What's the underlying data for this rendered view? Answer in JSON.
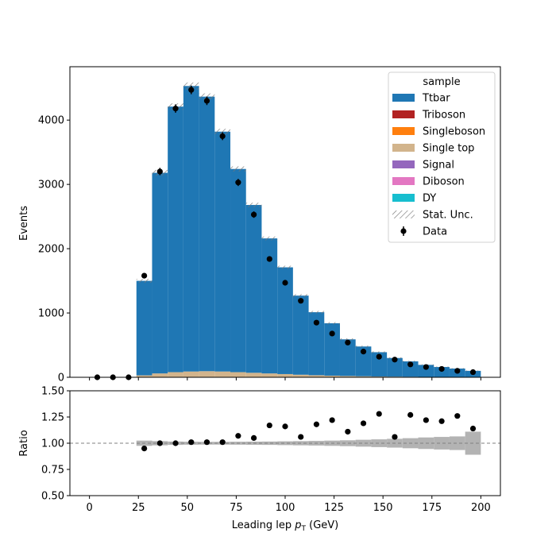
{
  "chart_data": [
    {
      "type": "bar",
      "ylabel": "Events",
      "ylim": [
        0,
        4830
      ],
      "yticks": [
        0,
        1000,
        2000,
        3000,
        4000
      ],
      "bin_edges": [
        0,
        8,
        16,
        24,
        32,
        40,
        48,
        56,
        64,
        72,
        80,
        88,
        96,
        104,
        112,
        120,
        128,
        136,
        144,
        152,
        160,
        168,
        176,
        184,
        192,
        200
      ],
      "legend": {
        "title": "sample",
        "position": "top-right",
        "entries": [
          "Ttbar",
          "Triboson",
          "Singleboson",
          "Single top",
          "Signal",
          "Diboson",
          "DY",
          "Stat. Unc.",
          "Data"
        ]
      },
      "series": [
        {
          "name": "Single top",
          "color": "#d2b48c",
          "values": [
            0,
            0,
            0,
            30,
            60,
            80,
            90,
            95,
            90,
            80,
            70,
            60,
            50,
            40,
            32,
            25,
            20,
            16,
            12,
            10,
            8,
            6,
            5,
            4,
            3
          ]
        },
        {
          "name": "Ttbar",
          "color": "#1f77b4",
          "values": [
            0,
            0,
            0,
            1470,
            3120,
            4130,
            4440,
            4270,
            3730,
            3160,
            2610,
            2100,
            1660,
            1230,
            980,
            815,
            570,
            463,
            378,
            290,
            240,
            187,
            155,
            132,
            97
          ]
        },
        {
          "name": "Triboson",
          "color": "#b22222",
          "values": []
        },
        {
          "name": "Singleboson",
          "color": "#ff7f0e",
          "values": []
        },
        {
          "name": "Signal",
          "color": "#9467bd",
          "values": []
        },
        {
          "name": "Diboson",
          "color": "#e377c2",
          "values": []
        },
        {
          "name": "DY",
          "color": "#17becf",
          "values": []
        }
      ],
      "stat_unc": [
        0,
        0,
        0,
        30,
        45,
        50,
        55,
        50,
        45,
        40,
        35,
        30,
        25,
        22,
        20,
        18,
        15,
        13,
        12,
        10,
        9,
        8,
        7,
        7,
        6
      ],
      "data_points": {
        "name": "Data",
        "x": [
          4,
          12,
          20,
          28,
          36,
          44,
          52,
          60,
          68,
          76,
          84,
          92,
          100,
          108,
          116,
          124,
          132,
          140,
          148,
          156,
          164,
          172,
          180,
          188,
          196
        ],
        "y": [
          0,
          0,
          0,
          1580,
          3200,
          4180,
          4470,
          4300,
          3750,
          3030,
          2530,
          1840,
          1470,
          1190,
          850,
          680,
          540,
          400,
          320,
          275,
          200,
          160,
          130,
          100,
          80
        ],
        "err": [
          0,
          0,
          0,
          40,
          57,
          65,
          67,
          66,
          61,
          55,
          50,
          43,
          38,
          34,
          29,
          26,
          23,
          20,
          18,
          17,
          14,
          13,
          11,
          10,
          9
        ]
      }
    },
    {
      "type": "scatter",
      "xlabel": "Leading lep p_T (GeV)",
      "xlabel_main": "Leading lep ",
      "xlabel_italic": "p",
      "xlabel_sub": "T",
      "xlabel_units": " (GeV)",
      "ylabel": "Ratio",
      "xlim": [
        -10,
        210
      ],
      "xticks": [
        0,
        25,
        50,
        75,
        100,
        125,
        150,
        175,
        200
      ],
      "ylim": [
        0.5,
        1.5
      ],
      "yticks": [
        "0.50",
        "0.75",
        "1.00",
        "1.25",
        "1.50"
      ],
      "reference_line": 1.0,
      "points": {
        "x": [
          28,
          36,
          44,
          52,
          60,
          68,
          76,
          84,
          92,
          100,
          108,
          116,
          124,
          132,
          140,
          148,
          156,
          164,
          172,
          180,
          188,
          196
        ],
        "y": [
          0.95,
          1.0,
          1.0,
          1.01,
          1.01,
          1.01,
          1.07,
          1.05,
          1.17,
          1.16,
          1.06,
          1.18,
          1.22,
          1.11,
          1.19,
          1.28,
          1.06,
          1.27,
          1.22,
          1.21,
          1.26,
          1.14
        ]
      },
      "unc_band": [
        0,
        0,
        0,
        0.025,
        0.02,
        0.016,
        0.014,
        0.013,
        0.013,
        0.014,
        0.015,
        0.016,
        0.018,
        0.02,
        0.022,
        0.025,
        0.028,
        0.033,
        0.037,
        0.042,
        0.048,
        0.055,
        0.06,
        0.065,
        0.11
      ]
    }
  ]
}
